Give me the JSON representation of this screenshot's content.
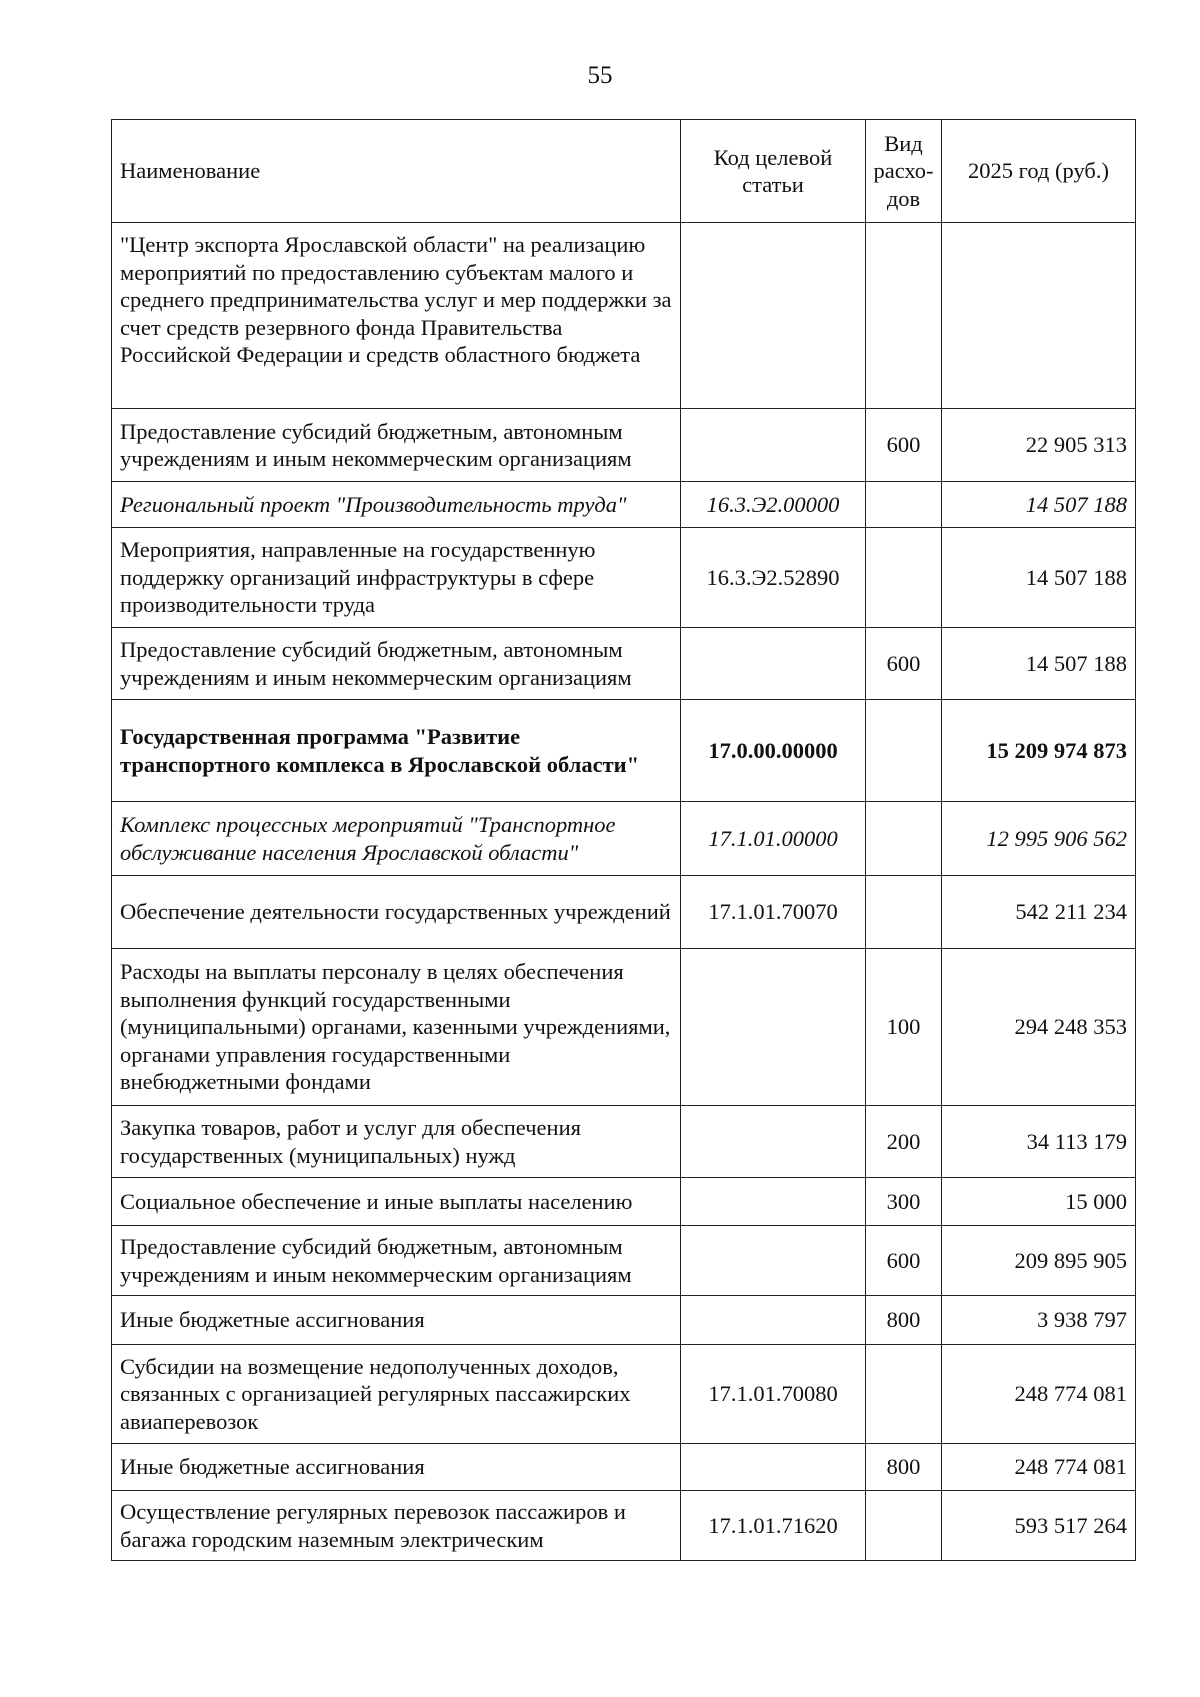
{
  "page_number": "55",
  "headers": {
    "name": "Наименование",
    "code": "Код целевой статьи",
    "type": "Вид расхо-дов",
    "amount": "2025 год (руб.)"
  },
  "rows": [
    {
      "name": "\"Центр экспорта Ярославской области\" на реализацию мероприятий по предоставлению субъектам малого и среднего предпринимательства услуг и мер поддержки за счет средств резервного фонда Правительства Российской Федерации и средств областного бюджета",
      "code": "",
      "type": "",
      "amount": "",
      "style": "normal"
    },
    {
      "name": "Предоставление субсидий бюджетным, автономным учреждениям и иным некоммерческим организациям",
      "code": "",
      "type": "600",
      "amount": "22 905 313",
      "style": "normal"
    },
    {
      "name": "Региональный проект \"Производительность труда\"",
      "code": "16.3.Э2.00000",
      "type": "",
      "amount": "14 507 188",
      "style": "italic"
    },
    {
      "name": "Мероприятия, направленные на государственную поддержку организаций инфраструктуры в сфере производительности труда",
      "code": "16.3.Э2.52890",
      "type": "",
      "amount": "14 507 188",
      "style": "normal"
    },
    {
      "name": "Предоставление субсидий бюджетным, автономным учреждениям и иным некоммерческим организациям",
      "code": "",
      "type": "600",
      "amount": "14 507 188",
      "style": "normal"
    },
    {
      "name": "Государственная программа \"Развитие транспортного комплекса в Ярославской области\"",
      "code": "17.0.00.00000",
      "type": "",
      "amount": "15 209 974 873",
      "style": "bold"
    },
    {
      "name": "Комплекс процессных мероприятий \"Транспортное обслуживание населения Ярославской области\"",
      "code": "17.1.01.00000",
      "type": "",
      "amount": "12 995 906 562",
      "style": "italic"
    },
    {
      "name": "Обеспечение деятельности государственных учреждений",
      "code": "17.1.01.70070",
      "type": "",
      "amount": "542 211 234",
      "style": "normal"
    },
    {
      "name": "Расходы на выплаты персоналу в целях обеспечения выполнения функций государственными (муниципальными) органами, казенными учреждениями, органами управления государственными внебюджетными фондами",
      "code": "",
      "type": "100",
      "amount": "294 248 353",
      "style": "normal"
    },
    {
      "name": "Закупка товаров, работ и услуг для обеспечения государственных (муниципальных) нужд",
      "code": "",
      "type": "200",
      "amount": "34 113 179",
      "style": "normal"
    },
    {
      "name": "Социальное обеспечение и иные выплаты населению",
      "code": "",
      "type": "300",
      "amount": "15 000",
      "style": "normal"
    },
    {
      "name": "Предоставление субсидий бюджетным, автономным учреждениям и иным некоммерческим организациям",
      "code": "",
      "type": "600",
      "amount": "209 895 905",
      "style": "normal"
    },
    {
      "name": "Иные бюджетные ассигнования",
      "code": "",
      "type": "800",
      "amount": "3 938 797",
      "style": "normal"
    },
    {
      "name": "Субсидии на возмещение недополученных доходов, связанных с организацией регулярных пассажирских авиаперевозок",
      "code": "17.1.01.70080",
      "type": "",
      "amount": "248 774 081",
      "style": "normal"
    },
    {
      "name": "Иные бюджетные ассигнования",
      "code": "",
      "type": "800",
      "amount": "248 774 081",
      "style": "normal"
    },
    {
      "name": "Осуществление регулярных перевозок пассажиров и багажа городским наземным электрическим",
      "code": "17.1.01.71620",
      "type": "",
      "amount": "593 517 264",
      "style": "normal"
    }
  ]
}
